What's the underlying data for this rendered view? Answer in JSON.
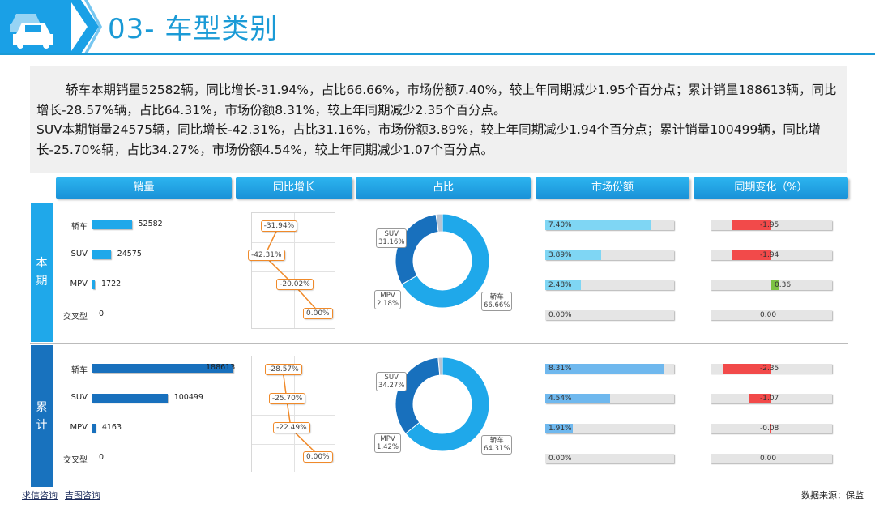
{
  "header": {
    "title": "03- 车型类别"
  },
  "summary": {
    "p1": "轿车本期销量52582辆，同比增长-31.94%，占比66.66%，市场份额7.40%，较上年同期减少1.95个百分点；累计销量188613辆，同比增长-28.57%辆，占比64.31%，市场份额8.31%，较上年同期减少2.35个百分点。",
    "p2": "SUV本期销量24575辆，同比增长-42.31%，占比31.16%，市场份额3.89%，较上年同期减少1.94个百分点；累计销量100499辆，同比增长-25.70%辆，占比34.27%，市场份额4.54%，较上年同期减少1.07个百分点。"
  },
  "columns": [
    "销量",
    "同比增长",
    "占比",
    "市场份额",
    "同期变化（%）"
  ],
  "sections": [
    {
      "label": "本期",
      "label_lines": [
        "本",
        "期"
      ]
    },
    {
      "label": "累计",
      "label_lines": [
        "累",
        "计"
      ]
    }
  ],
  "footer": {
    "link1": "求信咨询",
    "link2": "吉图咨询",
    "source": "数据来源：保监"
  },
  "colors": {
    "accent": "#1a9ad6",
    "period_bar": "#1fa8ea",
    "cumulative_bar": "#1870bd",
    "negative": "#f24a4a",
    "positive": "#7cc242",
    "growth_line": "#f08a2a"
  },
  "chart_data": [
    {
      "type": "bar",
      "section": "本期",
      "title": "销量",
      "categories": [
        "轿车",
        "SUV",
        "MPV",
        "交叉型"
      ],
      "values": [
        52582,
        24575,
        1722,
        0
      ],
      "value_labels": [
        "52582",
        "24575",
        "1722",
        "0"
      ],
      "xlim": [
        0,
        188613
      ]
    },
    {
      "type": "line",
      "section": "本期",
      "title": "同比增长",
      "categories": [
        "轿车",
        "SUV",
        "MPV",
        "交叉型"
      ],
      "values": [
        -31.94,
        -42.31,
        -20.02,
        0.0
      ],
      "value_labels": [
        "-31.94%",
        "-42.31%",
        "-20.02%",
        "0.00%"
      ]
    },
    {
      "type": "pie",
      "section": "本期",
      "title": "占比",
      "categories": [
        "轿车",
        "SUV",
        "MPV"
      ],
      "values": [
        66.66,
        31.16,
        2.18
      ],
      "value_labels": [
        "66.66%",
        "31.16%",
        "2.18%"
      ]
    },
    {
      "type": "bar",
      "section": "本期",
      "title": "市场份额",
      "categories": [
        "轿车",
        "SUV",
        "MPV",
        "交叉型"
      ],
      "values": [
        7.4,
        3.89,
        2.48,
        0.0
      ],
      "value_labels": [
        "7.40%",
        "3.89%",
        "2.48%",
        "0.00%"
      ],
      "xlim": [
        0,
        9.0
      ]
    },
    {
      "type": "bar",
      "section": "本期",
      "title": "同期变化（%）",
      "categories": [
        "轿车",
        "SUV",
        "MPV",
        "交叉型"
      ],
      "values": [
        -1.95,
        -1.94,
        0.36,
        0.0
      ],
      "value_labels": [
        "-1.95",
        "-1.94",
        "0.36",
        "0.00"
      ],
      "xlim": [
        -3,
        3
      ]
    },
    {
      "type": "bar",
      "section": "累计",
      "title": "销量",
      "categories": [
        "轿车",
        "SUV",
        "MPV",
        "交叉型"
      ],
      "values": [
        188613,
        100499,
        4163,
        0
      ],
      "value_labels": [
        "188613",
        "100499",
        "4163",
        "0"
      ],
      "xlim": [
        0,
        188613
      ]
    },
    {
      "type": "line",
      "section": "累计",
      "title": "同比增长",
      "categories": [
        "轿车",
        "SUV",
        "MPV",
        "交叉型"
      ],
      "values": [
        -28.57,
        -25.7,
        -22.49,
        0.0
      ],
      "value_labels": [
        "-28.57%",
        "-25.70%",
        "-22.49%",
        "0.00%"
      ]
    },
    {
      "type": "pie",
      "section": "累计",
      "title": "占比",
      "categories": [
        "轿车",
        "SUV",
        "MPV"
      ],
      "values": [
        64.31,
        34.27,
        1.42
      ],
      "value_labels": [
        "64.31%",
        "34.27%",
        "1.42%"
      ]
    },
    {
      "type": "bar",
      "section": "累计",
      "title": "市场份额",
      "categories": [
        "轿车",
        "SUV",
        "MPV",
        "交叉型"
      ],
      "values": [
        8.31,
        4.54,
        1.91,
        0.0
      ],
      "value_labels": [
        "8.31%",
        "4.54%",
        "1.91%",
        "0.00%"
      ],
      "xlim": [
        0,
        9.0
      ]
    },
    {
      "type": "bar",
      "section": "累计",
      "title": "同期变化（%）",
      "categories": [
        "轿车",
        "SUV",
        "MPV",
        "交叉型"
      ],
      "values": [
        -2.35,
        -1.07,
        -0.08,
        0.0
      ],
      "value_labels": [
        "-2.35",
        "-1.07",
        "-0.08",
        "0.00"
      ],
      "xlim": [
        -3,
        3
      ]
    }
  ]
}
